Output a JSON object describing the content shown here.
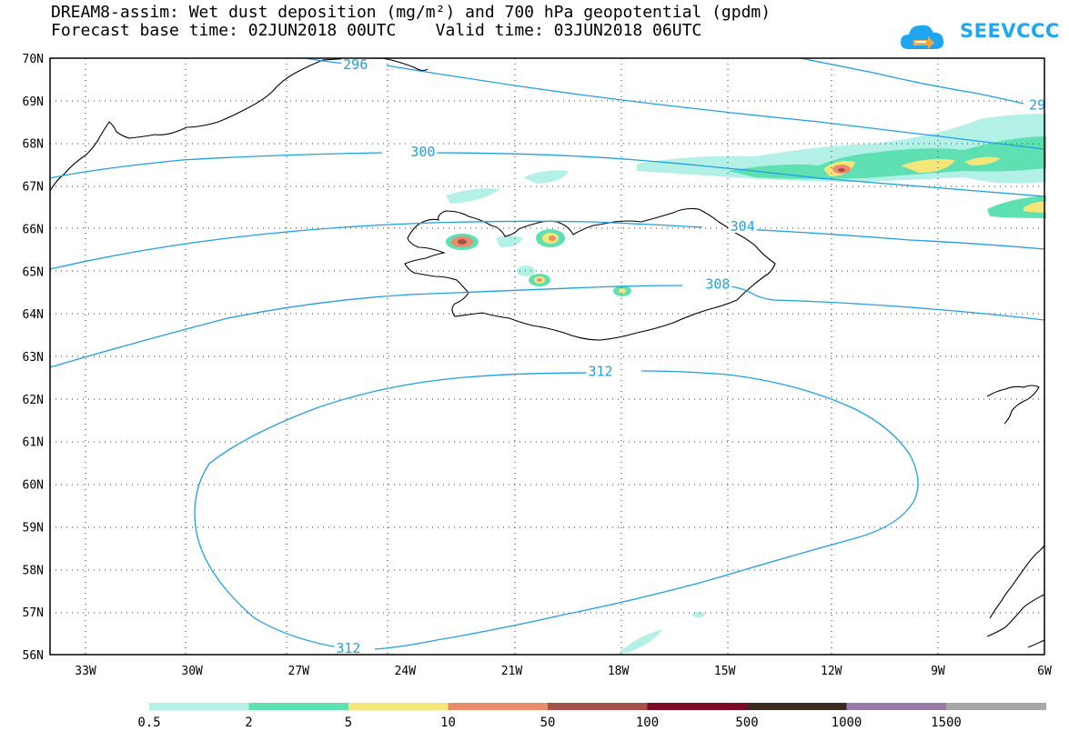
{
  "title": {
    "line1": "DREAM8-assim: Wet dust deposition (mg/m²) and 700 hPa geopotential (gpdm)",
    "line2": "Forecast base time: 02JUN2018 00UTC    Valid time: 03JUN2018 06UTC"
  },
  "logo": {
    "text": "SEEVCCC",
    "icon": "cloud-icon",
    "color": "#1ea7f0"
  },
  "map": {
    "lon_range": [
      -34,
      -6
    ],
    "lat_range": [
      56,
      70
    ],
    "lat_labels": [
      "70N",
      "69N",
      "68N",
      "67N",
      "66N",
      "65N",
      "64N",
      "63N",
      "62N",
      "61N",
      "60N",
      "59N",
      "58N",
      "57N",
      "56N"
    ],
    "lon_labels": [
      "33W",
      "30W",
      "27W",
      "24W",
      "21W",
      "18W",
      "15W",
      "12W",
      "9W",
      "6W"
    ],
    "contour_color": "#1f9fe6",
    "contour_labels": [
      {
        "text": "296",
        "lon": -25.4,
        "lat": 69.85
      },
      {
        "text": "29",
        "lon": -6.2,
        "lat": 68.9
      },
      {
        "text": "300",
        "lon": -23.5,
        "lat": 67.8
      },
      {
        "text": "304",
        "lon": -14.5,
        "lat": 66.05
      },
      {
        "text": "308",
        "lon": -15.2,
        "lat": 64.7
      },
      {
        "text": "312",
        "lon": -18.5,
        "lat": 62.65
      },
      {
        "text": "312",
        "lon": -25.6,
        "lat": 56.15
      }
    ]
  },
  "legend": {
    "colors": [
      "#b3f0e6",
      "#5ee0b3",
      "#f5e67a",
      "#e88c6b",
      "#a6504a",
      "#7a0a28",
      "#3a2a20",
      "#9a7aa8",
      "#a8a8a8"
    ],
    "labels": [
      "0.5",
      "2",
      "5",
      "10",
      "50",
      "100",
      "500",
      "1000",
      "1500"
    ]
  }
}
